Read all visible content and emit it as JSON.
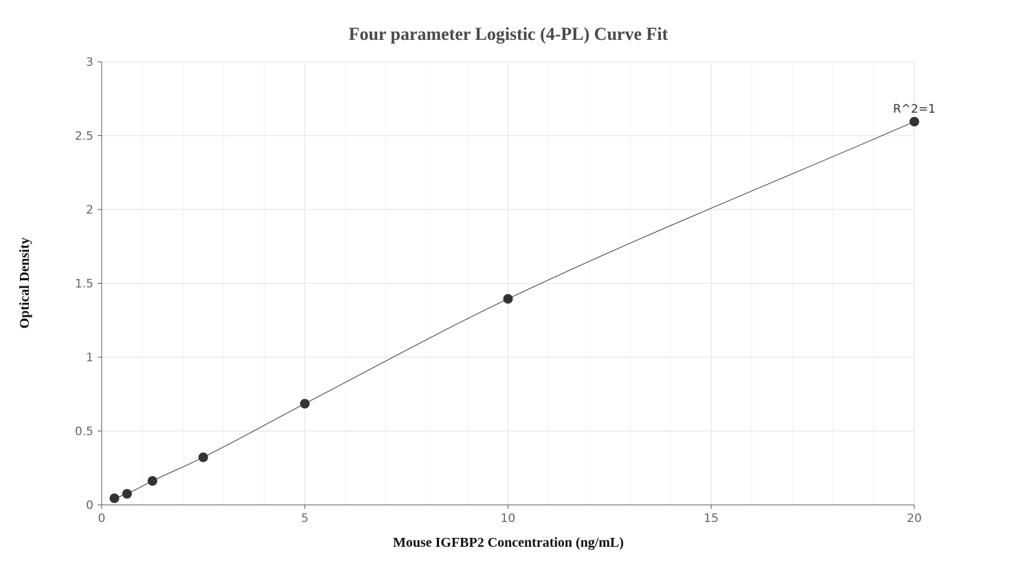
{
  "chart_data": {
    "type": "scatter",
    "title": "Four parameter Logistic (4-PL) Curve Fit",
    "xlabel": "Mouse IGFBP2 Concentration (ng/mL)",
    "ylabel": "Optical Density",
    "xlim": [
      0,
      20
    ],
    "ylim": [
      0,
      3
    ],
    "xticks": [
      0,
      5,
      10,
      15,
      20
    ],
    "xtick_labels": [
      "0",
      "5",
      "10",
      "15",
      "20"
    ],
    "yticks": [
      0,
      0.5,
      1,
      1.5,
      2,
      2.5,
      3
    ],
    "ytick_labels": [
      "0",
      "0.5",
      "1",
      "1.5",
      "2",
      "2.5",
      "3"
    ],
    "grid": true,
    "legend": "none",
    "annotation": "R^2=1",
    "series": [
      {
        "points": [
          {
            "x": 0.313,
            "y": 0.045
          },
          {
            "x": 0.625,
            "y": 0.075
          },
          {
            "x": 1.25,
            "y": 0.162
          },
          {
            "x": 2.5,
            "y": 0.322
          },
          {
            "x": 5,
            "y": 0.685
          },
          {
            "x": 10,
            "y": 1.395
          },
          {
            "x": 20,
            "y": 2.595
          }
        ]
      }
    ],
    "colors": {
      "points": "#333333",
      "curve": "#333333",
      "grid_major": "#e3e6ee",
      "grid_minor": "#f0f2f6",
      "axis": "#555555"
    }
  }
}
